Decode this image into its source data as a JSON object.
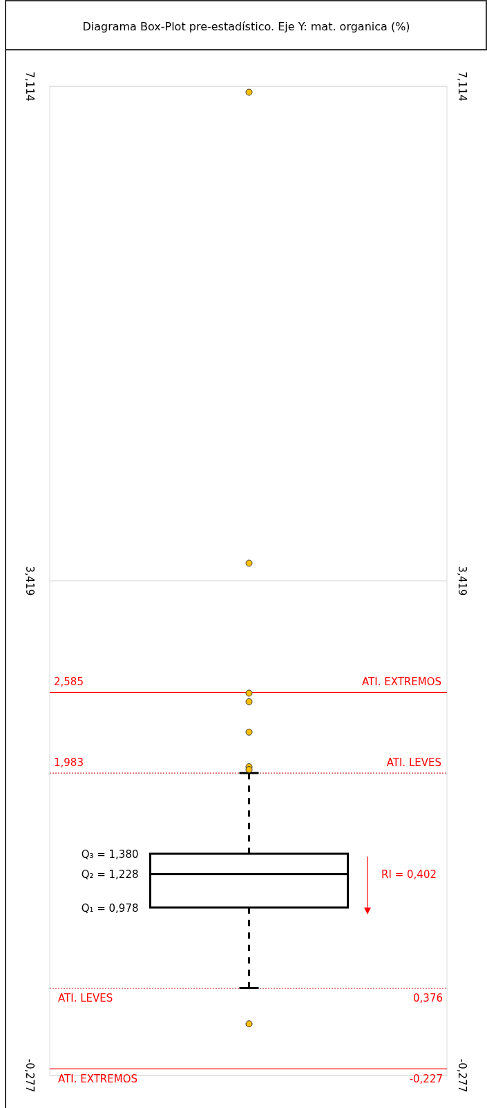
{
  "chart_data": {
    "type": "box",
    "title": "Diagrama Box-Plot pre-estadístico. Eje Y: mat. organica (%)",
    "categories": [
      null
    ],
    "boxes": [
      {
        "low": 0.376,
        "q1": 0.978,
        "median": 1.228,
        "q3": 1.38,
        "high": 1.983,
        "outliers": [
          7.07,
          3.551,
          2.58,
          2.516,
          2.289,
          2.03,
          2.009,
          0.109
        ]
      }
    ],
    "color": "#000000",
    "ylim": [
      -0.277,
      7.114
    ],
    "yticks": [
      {
        "value": -0.277,
        "label": "-0,277"
      },
      {
        "value": 3.419,
        "label": "3,419"
      },
      {
        "value": 7.114,
        "label": "7,114"
      }
    ],
    "y2lim": [
      -0.277,
      7.114
    ],
    "y2ticks": [
      {
        "value": -0.277,
        "label": "-0,277"
      },
      {
        "value": 3.419,
        "label": "3,419"
      },
      {
        "value": 7.114,
        "label": "7,114"
      }
    ],
    "grid": "y",
    "ref_lines": [
      {
        "axis": "y",
        "value": 2.585,
        "label": "ATI. EXTREMOS",
        "color": "#ff0000",
        "line_style": "solid"
      },
      {
        "axis": "y",
        "value": 1.983,
        "label": "ATI. LEVES",
        "color": "#c00000",
        "line_style": "dotted"
      },
      {
        "axis": "y",
        "value": 0.376,
        "label": "ATI. LEVES",
        "color": "#c00000",
        "line_style": "dotted"
      },
      {
        "axis": "y",
        "value": -0.227,
        "label": "ATI. EXTREMOS",
        "color": "#ff0000",
        "line_style": "solid"
      }
    ],
    "annotations": [
      "Q₃ = 1,380",
      "Q₂ = 1,228",
      "Q₁ = 0,978",
      "RI = 0,402",
      {
        "text": "2,585",
        "y": 2.585
      },
      {
        "text": "1,983",
        "y": 1.983
      },
      {
        "text": "0,376",
        "y": 0.376
      },
      {
        "text": "-0,227",
        "y": -0.227
      }
    ]
  }
}
